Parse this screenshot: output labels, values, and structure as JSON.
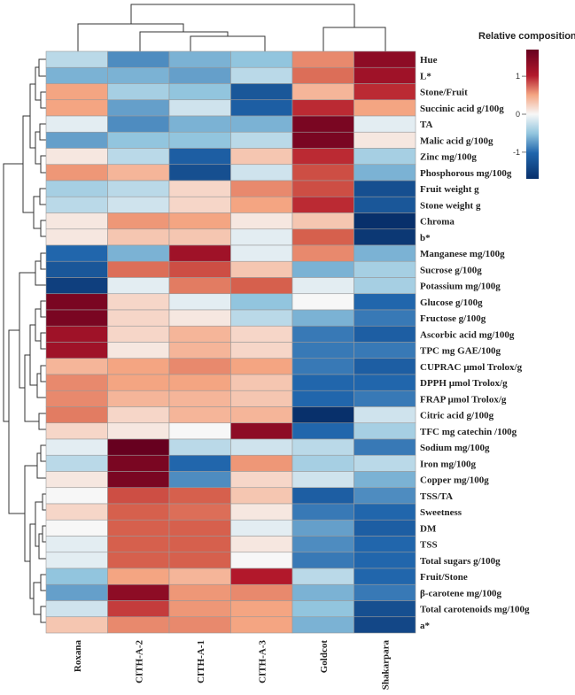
{
  "chart_data": {
    "type": "heatmap",
    "title": "",
    "legend": {
      "title": "Relative composition",
      "ticks": [
        1,
        0,
        -1
      ],
      "tick_labels": [
        "1",
        "0",
        "-1"
      ],
      "range": [
        -1.7,
        1.7
      ],
      "colors": {
        "low": "#08306b",
        "mid_low": "#4393c3",
        "mid": "#f7f7f7",
        "mid_high": "#f4a582",
        "high": "#67001f"
      }
    },
    "columns": [
      "Roxana",
      "CITH-A-2",
      "CITH-A-1",
      "CITH-A-3",
      "Goldcot",
      "Shakarpara"
    ],
    "rows": [
      "Hue",
      "L*",
      "Stone/Fruit",
      "Succinic acid g/100g",
      "TA",
      "Malic acid g/100g",
      "Zinc mg/100g",
      "Phosphorous mg/100g",
      "Fruit weight g",
      "Stone weight g",
      "Chroma",
      "b*",
      "Manganese mg/100g",
      "Sucrose g/100g",
      "Potassium mg/100g",
      "Glucose g/100g",
      "Fructose g/100g",
      "Ascorbic acid mg/100g",
      "TPC mg GAE/100g",
      "CUPRAC µmol Trolox/g",
      "DPPH µmol Trolox/g",
      "FRAP µmol Trolox/g",
      "Citric acid g/100g",
      "TFC mg catechin /100g",
      "Sodium mg/100g",
      "Iron mg/100g",
      "Copper mg/100g",
      "TSS/TA",
      "Sweetness",
      "DM",
      "TSS",
      "Total sugars g/100g",
      "Fruit/Stone",
      "β-carotene mg/100g",
      "Total carotenoids mg/100g",
      "a*"
    ],
    "values": [
      [
        -0.3,
        -0.8,
        -0.6,
        -0.5,
        0.7,
        1.6
      ],
      [
        -0.6,
        -0.6,
        -0.7,
        -0.3,
        0.9,
        1.5
      ],
      [
        0.5,
        -0.4,
        -0.5,
        -1.2,
        0.4,
        1.3
      ],
      [
        0.5,
        -0.7,
        -0.2,
        -1.1,
        1.3,
        0.5
      ],
      [
        -0.1,
        -0.8,
        -0.6,
        -0.6,
        1.7,
        -0.1
      ],
      [
        -0.7,
        -0.5,
        -0.5,
        -0.3,
        1.7,
        0.1
      ],
      [
        0.1,
        -0.3,
        -1.1,
        0.3,
        1.3,
        -0.4
      ],
      [
        0.6,
        0.4,
        -1.3,
        -0.2,
        1.1,
        -0.6
      ],
      [
        -0.4,
        -0.3,
        0.2,
        0.7,
        1.1,
        -1.3
      ],
      [
        -0.3,
        -0.2,
        0.2,
        0.5,
        1.3,
        -1.2
      ],
      [
        0.1,
        0.6,
        0.5,
        0.1,
        0.3,
        -1.7
      ],
      [
        0.1,
        0.3,
        0.3,
        -0.1,
        1.0,
        -1.6
      ],
      [
        -1.0,
        -0.6,
        1.5,
        -0.1,
        0.7,
        -0.6
      ],
      [
        -1.2,
        0.9,
        1.1,
        0.3,
        -0.6,
        -0.4
      ],
      [
        -1.5,
        -0.1,
        0.8,
        1.0,
        -0.1,
        -0.4
      ],
      [
        1.7,
        0.2,
        -0.1,
        -0.5,
        0.0,
        -1.0
      ],
      [
        1.7,
        0.2,
        0.1,
        -0.3,
        -0.6,
        -0.9
      ],
      [
        1.5,
        0.2,
        0.4,
        0.2,
        -0.9,
        -1.1
      ],
      [
        1.5,
        0.1,
        0.4,
        0.2,
        -0.9,
        -0.9
      ],
      [
        0.4,
        0.5,
        0.7,
        0.5,
        -0.9,
        -1.1
      ],
      [
        0.7,
        0.5,
        0.5,
        0.3,
        -1.0,
        -1.0
      ],
      [
        0.7,
        0.4,
        0.4,
        0.3,
        -1.0,
        -0.9
      ],
      [
        0.8,
        0.2,
        0.4,
        0.4,
        -1.7,
        -0.2
      ],
      [
        0.2,
        0.1,
        0.0,
        1.6,
        -1.0,
        -0.4
      ],
      [
        -0.1,
        1.8,
        -0.3,
        -0.2,
        -0.3,
        -0.9
      ],
      [
        -0.3,
        1.7,
        -1.0,
        0.6,
        -0.4,
        -0.3
      ],
      [
        0.1,
        1.7,
        -0.8,
        0.2,
        -0.2,
        -0.6
      ],
      [
        0.0,
        1.1,
        1.0,
        0.3,
        -1.1,
        -0.8
      ],
      [
        0.2,
        1.0,
        0.9,
        0.1,
        -0.9,
        -1.0
      ],
      [
        0.0,
        1.0,
        1.0,
        -0.1,
        -0.7,
        -1.1
      ],
      [
        -0.1,
        1.0,
        1.0,
        0.1,
        -0.8,
        -1.0
      ],
      [
        -0.1,
        1.0,
        1.0,
        0.0,
        -0.9,
        -1.0
      ],
      [
        -0.5,
        0.5,
        0.4,
        1.4,
        -0.3,
        -1.0
      ],
      [
        -0.7,
        1.6,
        0.6,
        0.7,
        -0.6,
        -0.9
      ],
      [
        -0.2,
        1.2,
        0.6,
        0.5,
        -0.5,
        -1.3
      ],
      [
        0.3,
        0.7,
        0.7,
        0.5,
        -0.6,
        -1.4
      ]
    ],
    "column_dendrogram": {
      "merges": [
        {
          "a": "CITH-A-1",
          "b": "CITH-A-3",
          "height": 0.32
        },
        {
          "a": "CITH-A-2",
          "b": "(CITH-A-1,CITH-A-3)",
          "height": 0.45
        },
        {
          "a": "Roxana",
          "b": "(CITH-A-2,CITH-A-1,CITH-A-3)",
          "height": 0.78
        },
        {
          "a": "Goldcot",
          "b": "Shakarpara",
          "height": 0.5
        },
        {
          "a": "all-left",
          "b": "all-right",
          "height": 1.0
        }
      ]
    }
  }
}
